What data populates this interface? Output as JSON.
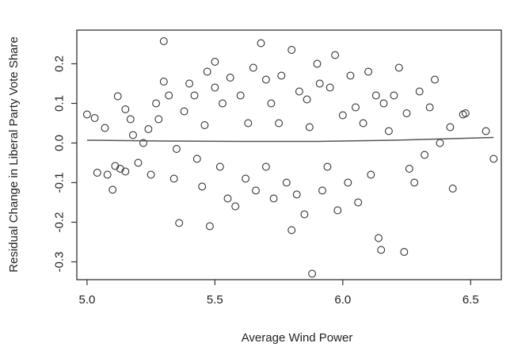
{
  "chart_data": {
    "type": "scatter",
    "title": "",
    "xlabel": "Average Wind Power",
    "ylabel": "Residual Change in Liberal Party Vote Share",
    "xlim": [
      4.96,
      6.62
    ],
    "ylim": [
      -0.345,
      0.285
    ],
    "x_ticks": [
      5.0,
      5.5,
      6.0,
      6.5
    ],
    "x_tick_labels": [
      "5.0",
      "5.5",
      "6.0",
      "6.5"
    ],
    "y_ticks": [
      -0.3,
      -0.2,
      -0.1,
      0.0,
      0.1,
      0.2
    ],
    "y_tick_labels": [
      "-0.3",
      "-0.2",
      "-0.1",
      "0.0",
      "0.1",
      "0.2"
    ],
    "grid": false,
    "legend": "none",
    "marker": "open-circle",
    "colors": {
      "points": "#333333",
      "fit_line": "#555555",
      "axes": "#333333"
    },
    "fit_line": {
      "x": [
        5.0,
        5.3,
        5.6,
        5.9,
        6.2,
        6.59
      ],
      "y": [
        0.007,
        0.005,
        0.004,
        0.004,
        0.007,
        0.014
      ]
    },
    "points": [
      [
        5.0,
        0.072
      ],
      [
        5.03,
        0.063
      ],
      [
        5.07,
        0.038
      ],
      [
        5.04,
        -0.075
      ],
      [
        5.08,
        -0.08
      ],
      [
        5.1,
        -0.118
      ],
      [
        5.11,
        -0.058
      ],
      [
        5.13,
        -0.065
      ],
      [
        5.15,
        -0.072
      ],
      [
        5.12,
        0.118
      ],
      [
        5.15,
        0.085
      ],
      [
        5.17,
        0.06
      ],
      [
        5.18,
        0.02
      ],
      [
        5.2,
        -0.05
      ],
      [
        5.22,
        0.0
      ],
      [
        5.24,
        0.035
      ],
      [
        5.25,
        -0.08
      ],
      [
        5.27,
        0.1
      ],
      [
        5.28,
        0.06
      ],
      [
        5.3,
        0.257
      ],
      [
        5.3,
        0.155
      ],
      [
        5.32,
        0.12
      ],
      [
        5.34,
        -0.09
      ],
      [
        5.35,
        -0.015
      ],
      [
        5.36,
        -0.202
      ],
      [
        5.38,
        0.08
      ],
      [
        5.4,
        0.15
      ],
      [
        5.42,
        0.12
      ],
      [
        5.43,
        -0.04
      ],
      [
        5.45,
        -0.11
      ],
      [
        5.46,
        0.045
      ],
      [
        5.47,
        0.18
      ],
      [
        5.48,
        -0.21
      ],
      [
        5.5,
        0.205
      ],
      [
        5.5,
        0.14
      ],
      [
        5.52,
        -0.06
      ],
      [
        5.53,
        0.1
      ],
      [
        5.55,
        -0.14
      ],
      [
        5.56,
        0.165
      ],
      [
        5.58,
        -0.16
      ],
      [
        5.6,
        0.12
      ],
      [
        5.62,
        -0.09
      ],
      [
        5.63,
        0.05
      ],
      [
        5.65,
        0.19
      ],
      [
        5.66,
        -0.12
      ],
      [
        5.68,
        0.252
      ],
      [
        5.7,
        0.16
      ],
      [
        5.7,
        -0.06
      ],
      [
        5.72,
        0.1
      ],
      [
        5.73,
        -0.14
      ],
      [
        5.75,
        0.05
      ],
      [
        5.76,
        0.17
      ],
      [
        5.78,
        -0.1
      ],
      [
        5.8,
        0.235
      ],
      [
        5.8,
        -0.22
      ],
      [
        5.82,
        -0.13
      ],
      [
        5.83,
        0.13
      ],
      [
        5.85,
        -0.18
      ],
      [
        5.86,
        0.11
      ],
      [
        5.87,
        0.04
      ],
      [
        5.88,
        -0.33
      ],
      [
        5.9,
        0.2
      ],
      [
        5.91,
        0.15
      ],
      [
        5.92,
        -0.12
      ],
      [
        5.94,
        -0.06
      ],
      [
        5.95,
        0.14
      ],
      [
        5.97,
        0.222
      ],
      [
        5.98,
        -0.17
      ],
      [
        6.0,
        0.07
      ],
      [
        6.02,
        -0.1
      ],
      [
        6.03,
        0.17
      ],
      [
        6.05,
        0.09
      ],
      [
        6.06,
        -0.15
      ],
      [
        6.08,
        0.05
      ],
      [
        6.1,
        0.18
      ],
      [
        6.11,
        -0.08
      ],
      [
        6.13,
        0.12
      ],
      [
        6.14,
        -0.24
      ],
      [
        6.15,
        -0.27
      ],
      [
        6.16,
        0.1
      ],
      [
        6.18,
        0.03
      ],
      [
        6.2,
        0.12
      ],
      [
        6.22,
        0.19
      ],
      [
        6.24,
        -0.275
      ],
      [
        6.25,
        0.075
      ],
      [
        6.26,
        -0.065
      ],
      [
        6.28,
        -0.1
      ],
      [
        6.3,
        0.13
      ],
      [
        6.32,
        -0.03
      ],
      [
        6.34,
        0.09
      ],
      [
        6.36,
        0.16
      ],
      [
        6.38,
        0.0
      ],
      [
        6.42,
        0.04
      ],
      [
        6.43,
        -0.115
      ],
      [
        6.47,
        0.072
      ],
      [
        6.48,
        0.075
      ],
      [
        6.56,
        0.03
      ],
      [
        6.59,
        -0.04
      ]
    ]
  }
}
